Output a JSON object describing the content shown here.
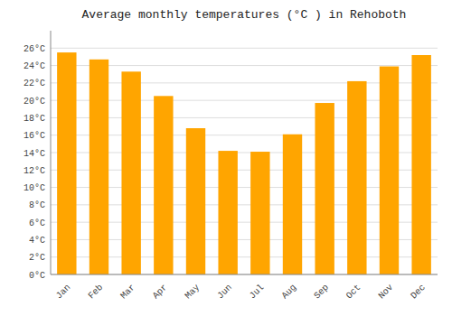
{
  "chart_data": {
    "type": "bar",
    "title": "Average monthly temperatures (°C ) in Rehoboth",
    "categories": [
      "Jan",
      "Feb",
      "Mar",
      "Apr",
      "May",
      "Jun",
      "Jul",
      "Aug",
      "Sep",
      "Oct",
      "Nov",
      "Dec"
    ],
    "values": [
      25.5,
      24.7,
      23.3,
      20.5,
      16.8,
      14.2,
      14.1,
      16.1,
      19.7,
      22.2,
      23.9,
      25.2
    ],
    "color": "#FFA500",
    "ylim": [
      0,
      28
    ],
    "yticks": [
      {
        "value": 0,
        "label": "0°C"
      },
      {
        "value": 2,
        "label": "2°C"
      },
      {
        "value": 4,
        "label": "4°C"
      },
      {
        "value": 6,
        "label": "6°C"
      },
      {
        "value": 8,
        "label": "8°C"
      },
      {
        "value": 10,
        "label": "10°C"
      },
      {
        "value": 12,
        "label": "12°C"
      },
      {
        "value": 14,
        "label": "14°C"
      },
      {
        "value": 16,
        "label": "16°C"
      },
      {
        "value": 18,
        "label": "18°C"
      },
      {
        "value": 20,
        "label": "20°C"
      },
      {
        "value": 22,
        "label": "22°C"
      },
      {
        "value": 24,
        "label": "24°C"
      },
      {
        "value": 26,
        "label": "26°C"
      }
    ],
    "grid": true
  }
}
